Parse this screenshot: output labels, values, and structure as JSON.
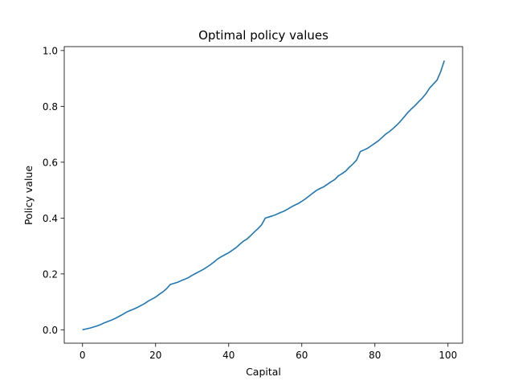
{
  "chart_data": {
    "type": "line",
    "title": "Optimal policy values",
    "xlabel": "Capital",
    "ylabel": "Policy value",
    "xlim": [
      -5,
      104
    ],
    "ylim": [
      -0.048,
      1.014
    ],
    "xticks": [
      0,
      20,
      40,
      60,
      80,
      100
    ],
    "xtick_labels": [
      "0",
      "20",
      "40",
      "60",
      "80",
      "100"
    ],
    "yticks": [
      0.0,
      0.2,
      0.4,
      0.6,
      0.8,
      1.0
    ],
    "ytick_labels": [
      "0.0",
      "0.2",
      "0.4",
      "0.6",
      "0.8",
      "1.0"
    ],
    "grid": false,
    "line_color": "#1f77b4",
    "series": [
      {
        "x": [
          0,
          1,
          2,
          3,
          4,
          5,
          6,
          7,
          8,
          9,
          10,
          11,
          12,
          13,
          14,
          15,
          16,
          17,
          18,
          19,
          20,
          21,
          22,
          23,
          24,
          25,
          26,
          27,
          28,
          29,
          30,
          31,
          32,
          33,
          34,
          35,
          36,
          37,
          38,
          39,
          40,
          41,
          42,
          43,
          44,
          45,
          46,
          47,
          48,
          49,
          50,
          51,
          52,
          53,
          54,
          55,
          56,
          57,
          58,
          59,
          60,
          61,
          62,
          63,
          64,
          65,
          66,
          67,
          68,
          69,
          70,
          71,
          72,
          73,
          74,
          75,
          76,
          77,
          78,
          79,
          80,
          81,
          82,
          83,
          84,
          85,
          86,
          87,
          88,
          89,
          90,
          91,
          92,
          93,
          94,
          95,
          96,
          97,
          98,
          99
        ],
        "y": [
          0.0,
          0.003,
          0.006,
          0.01,
          0.014,
          0.019,
          0.025,
          0.03,
          0.035,
          0.041,
          0.048,
          0.055,
          0.063,
          0.069,
          0.074,
          0.08,
          0.087,
          0.094,
          0.103,
          0.11,
          0.117,
          0.127,
          0.136,
          0.147,
          0.162,
          0.166,
          0.17,
          0.176,
          0.181,
          0.187,
          0.195,
          0.202,
          0.209,
          0.216,
          0.224,
          0.233,
          0.243,
          0.254,
          0.262,
          0.269,
          0.276,
          0.285,
          0.294,
          0.306,
          0.317,
          0.325,
          0.337,
          0.35,
          0.362,
          0.376,
          0.4,
          0.404,
          0.408,
          0.413,
          0.419,
          0.424,
          0.431,
          0.439,
          0.446,
          0.452,
          0.46,
          0.469,
          0.479,
          0.489,
          0.499,
          0.506,
          0.512,
          0.521,
          0.53,
          0.538,
          0.551,
          0.559,
          0.568,
          0.582,
          0.594,
          0.608,
          0.638,
          0.644,
          0.65,
          0.659,
          0.668,
          0.677,
          0.689,
          0.701,
          0.71,
          0.721,
          0.733,
          0.747,
          0.762,
          0.778,
          0.791,
          0.803,
          0.817,
          0.83,
          0.846,
          0.866,
          0.88,
          0.894,
          0.924,
          0.964
        ]
      }
    ]
  }
}
